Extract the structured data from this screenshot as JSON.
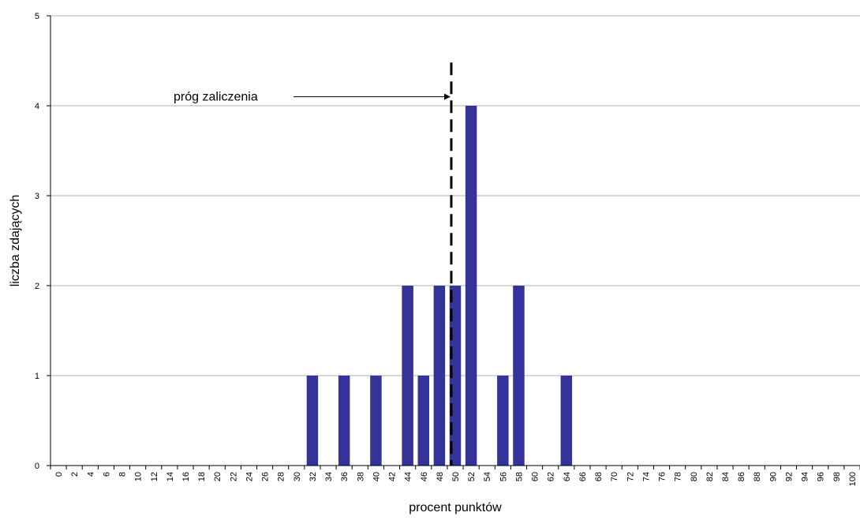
{
  "chart_data": {
    "type": "bar",
    "title": "",
    "xlabel": "procent punktów",
    "ylabel": "liczba zdających",
    "ylim": [
      0,
      5
    ],
    "yticks": [
      0,
      1,
      2,
      3,
      4,
      5
    ],
    "grid": true,
    "categories": [
      "0",
      "2",
      "4",
      "6",
      "8",
      "10",
      "12",
      "14",
      "16",
      "18",
      "20",
      "22",
      "24",
      "26",
      "28",
      "30",
      "32",
      "34",
      "36",
      "38",
      "40",
      "42",
      "44",
      "46",
      "48",
      "50",
      "52",
      "54",
      "56",
      "58",
      "60",
      "62",
      "64",
      "66",
      "68",
      "70",
      "72",
      "74",
      "76",
      "78",
      "80",
      "82",
      "84",
      "86",
      "88",
      "90",
      "92",
      "94",
      "96",
      "98",
      "100"
    ],
    "values": [
      0,
      0,
      0,
      0,
      0,
      0,
      0,
      0,
      0,
      0,
      0,
      0,
      0,
      0,
      0,
      0,
      1,
      0,
      1,
      0,
      1,
      0,
      2,
      1,
      2,
      2,
      4,
      0,
      1,
      2,
      0,
      0,
      1,
      0,
      0,
      0,
      0,
      0,
      0,
      0,
      0,
      0,
      0,
      0,
      0,
      0,
      0,
      0,
      0,
      0,
      0
    ],
    "bar_color": "#333399",
    "threshold": {
      "x": 49.5,
      "label": "próg zaliczenia"
    }
  }
}
